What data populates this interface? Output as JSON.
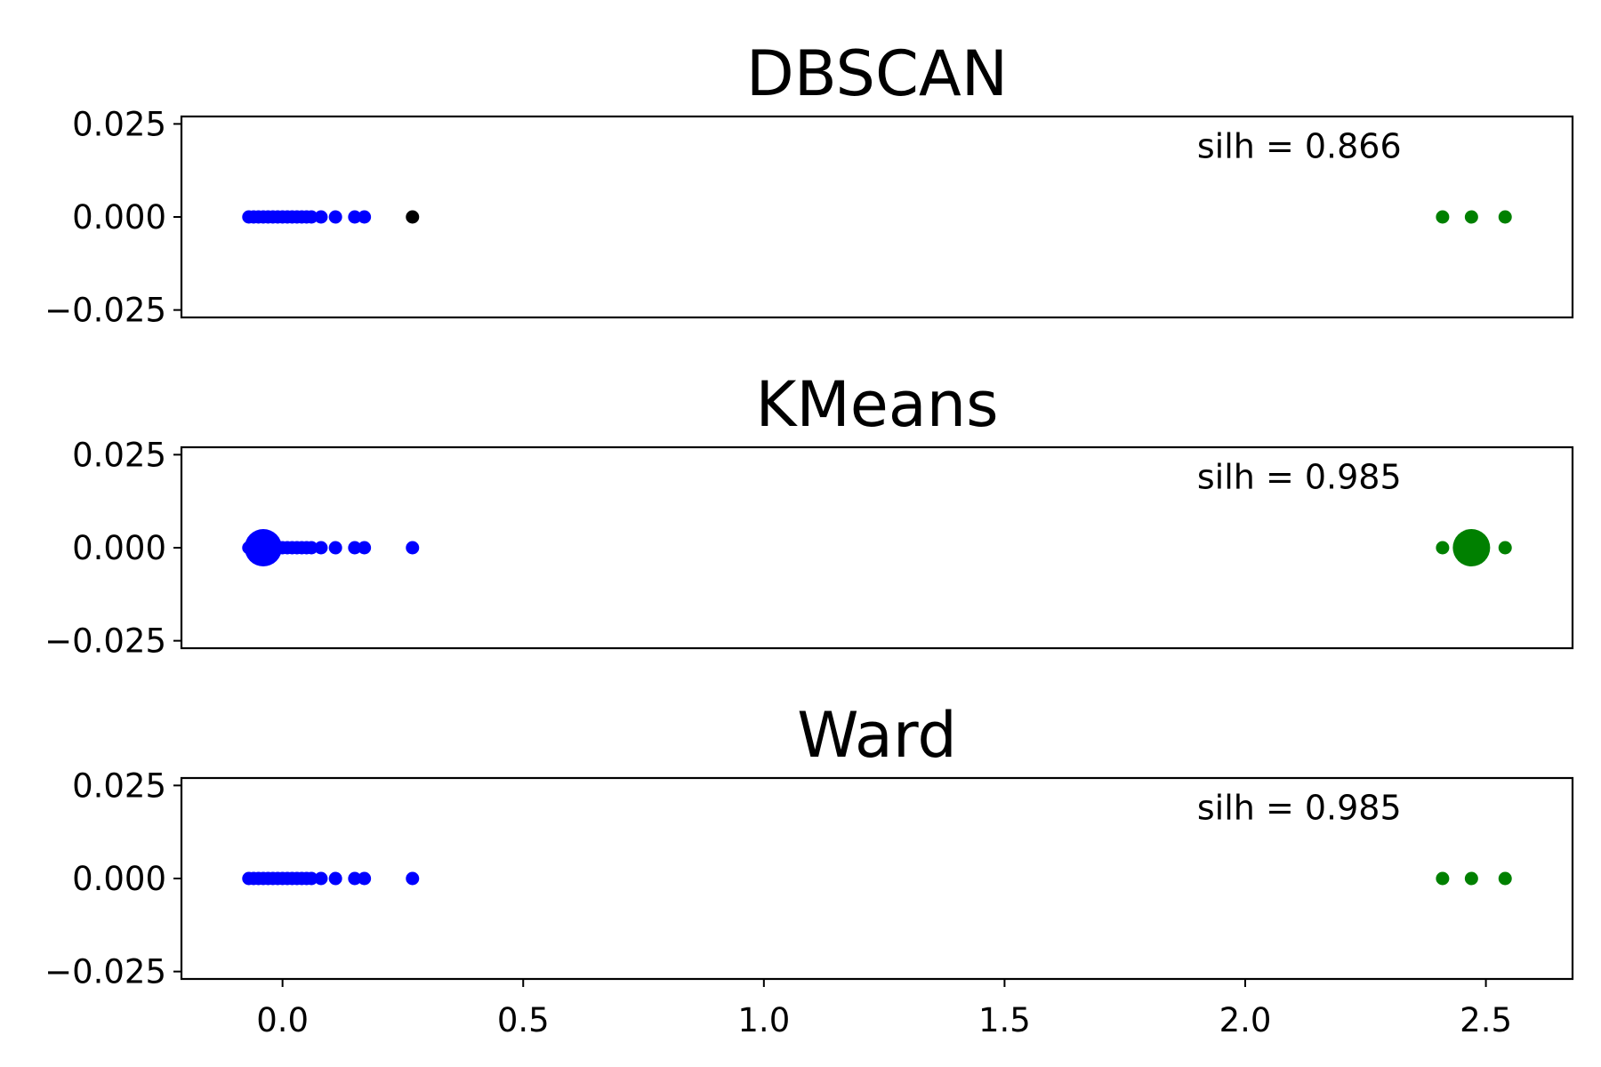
{
  "chart_data": [
    {
      "type": "scatter",
      "title": "DBSCAN",
      "annotation": {
        "text": "silh = 0.866",
        "x": 1.9,
        "y": 0.019
      },
      "xlim": [
        -0.21,
        2.68
      ],
      "ylim": [
        -0.027,
        0.027
      ],
      "yticks": [
        0.025,
        0.0,
        -0.025
      ],
      "ytick_labels": [
        "0.025",
        "0.000",
        "−0.025"
      ],
      "show_xticks": false,
      "series": [
        {
          "color": "#0000ff",
          "marker_size": 15,
          "x": [
            -0.07,
            -0.06,
            -0.05,
            -0.04,
            -0.03,
            -0.02,
            -0.01,
            0.0,
            0.01,
            0.02,
            0.03,
            0.04,
            0.05,
            0.06,
            0.08,
            0.11,
            0.15,
            0.17
          ],
          "y": [
            0,
            0,
            0,
            0,
            0,
            0,
            0,
            0,
            0,
            0,
            0,
            0,
            0,
            0,
            0,
            0,
            0,
            0
          ]
        },
        {
          "color": "#000000",
          "marker_size": 15,
          "x": [
            0.27
          ],
          "y": [
            0
          ]
        },
        {
          "color": "#008000",
          "marker_size": 15,
          "x": [
            2.41,
            2.47,
            2.54
          ],
          "y": [
            0,
            0,
            0
          ]
        }
      ]
    },
    {
      "type": "scatter",
      "title": "KMeans",
      "annotation": {
        "text": "silh = 0.985",
        "x": 1.9,
        "y": 0.019
      },
      "xlim": [
        -0.21,
        2.68
      ],
      "ylim": [
        -0.027,
        0.027
      ],
      "yticks": [
        0.025,
        0.0,
        -0.025
      ],
      "ytick_labels": [
        "0.025",
        "0.000",
        "−0.025"
      ],
      "show_xticks": false,
      "series": [
        {
          "color": "#0000ff",
          "marker_size": 15,
          "x": [
            -0.07,
            -0.06,
            -0.05,
            -0.04,
            -0.03,
            -0.02,
            -0.01,
            0.0,
            0.01,
            0.02,
            0.03,
            0.04,
            0.05,
            0.06,
            0.08,
            0.11,
            0.15,
            0.17,
            0.27
          ],
          "y": [
            0,
            0,
            0,
            0,
            0,
            0,
            0,
            0,
            0,
            0,
            0,
            0,
            0,
            0,
            0,
            0,
            0,
            0,
            0
          ]
        },
        {
          "color": "#008000",
          "marker_size": 15,
          "x": [
            2.41,
            2.54
          ],
          "y": [
            0,
            0
          ]
        },
        {
          "name": "",
          "color": "#0000ff",
          "marker_size": 42,
          "x": [
            -0.04
          ],
          "y": [
            0
          ]
        },
        {
          "name": "",
          "color": "#008000",
          "marker_size": 42,
          "x": [
            2.47
          ],
          "y": [
            0
          ]
        }
      ]
    },
    {
      "type": "scatter",
      "title": "Ward",
      "annotation": {
        "text": "silh = 0.985",
        "x": 1.9,
        "y": 0.019
      },
      "xlim": [
        -0.21,
        2.68
      ],
      "ylim": [
        -0.027,
        0.027
      ],
      "yticks": [
        0.025,
        0.0,
        -0.025
      ],
      "ytick_labels": [
        "0.025",
        "0.000",
        "−0.025"
      ],
      "show_xticks": true,
      "xticks": [
        0.0,
        0.5,
        1.0,
        1.5,
        2.0,
        2.5
      ],
      "xtick_labels": [
        "0.0",
        "0.5",
        "1.0",
        "1.5",
        "2.0",
        "2.5"
      ],
      "series": [
        {
          "color": "#0000ff",
          "marker_size": 15,
          "x": [
            -0.07,
            -0.06,
            -0.05,
            -0.04,
            -0.03,
            -0.02,
            -0.01,
            0.0,
            0.01,
            0.02,
            0.03,
            0.04,
            0.05,
            0.06,
            0.08,
            0.11,
            0.15,
            0.17,
            0.27
          ],
          "y": [
            0,
            0,
            0,
            0,
            0,
            0,
            0,
            0,
            0,
            0,
            0,
            0,
            0,
            0,
            0,
            0,
            0,
            0,
            0
          ]
        },
        {
          "color": "#008000",
          "marker_size": 15,
          "x": [
            2.41,
            2.47,
            2.54
          ],
          "y": [
            0,
            0,
            0
          ]
        }
      ]
    }
  ]
}
